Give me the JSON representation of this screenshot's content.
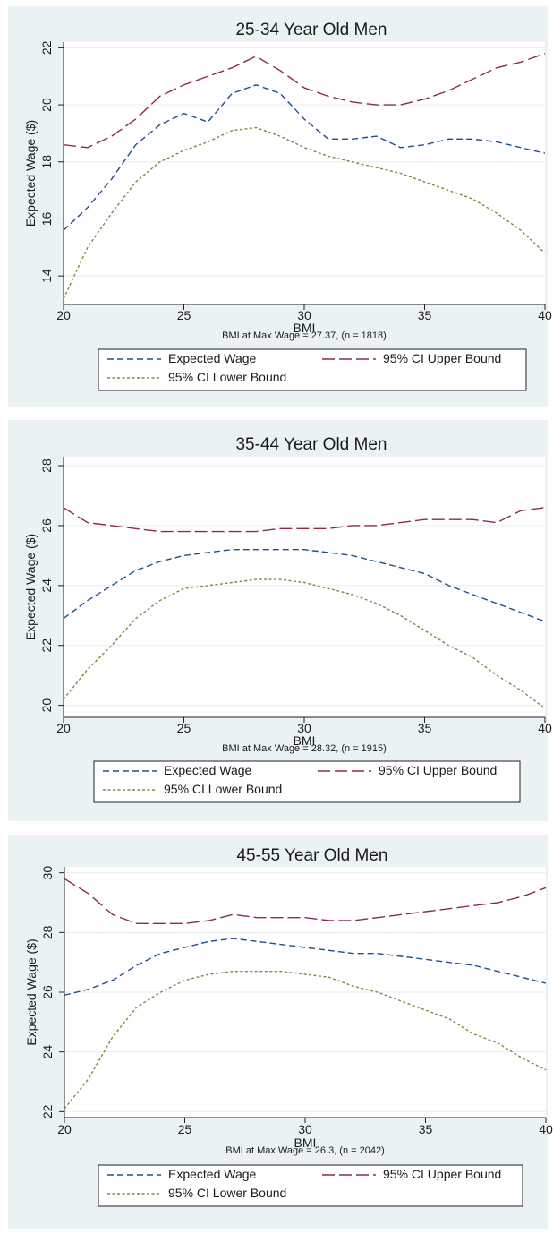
{
  "chart_data": [
    {
      "type": "line",
      "title": "25-34 Year Old Men",
      "xlabel": "BMI",
      "ylabel": "Expected Wage ($)",
      "note": "BMI at Max Wage = 27.37, (n = 1818)",
      "xlim": [
        20,
        40
      ],
      "ylim": [
        13,
        22.2
      ],
      "xticks": [
        "20",
        "25",
        "30",
        "35",
        "40"
      ],
      "yticks": [
        "14",
        "16",
        "18",
        "20",
        "22"
      ],
      "x": [
        20,
        21,
        22,
        23,
        24,
        25,
        26,
        27,
        28,
        29,
        30,
        31,
        32,
        33,
        34,
        35,
        36,
        37,
        38,
        39,
        40
      ],
      "legend": {
        "position": "bottom"
      },
      "series": [
        {
          "name": "Expected Wage",
          "color": "#1f4e8c",
          "dash": "7,4",
          "values": [
            15.6,
            16.4,
            17.4,
            18.6,
            19.3,
            19.7,
            19.4,
            20.4,
            20.7,
            20.4,
            19.5,
            18.8,
            18.8,
            18.9,
            18.5,
            18.6,
            18.8,
            18.8,
            18.7,
            18.5,
            18.3
          ]
        },
        {
          "name": "95% CI Upper Bound",
          "color": "#8b2f3a",
          "dash": "14,5",
          "values": [
            18.6,
            18.5,
            18.9,
            19.5,
            20.3,
            20.7,
            21.0,
            21.3,
            21.7,
            21.2,
            20.6,
            20.3,
            20.1,
            20.0,
            20.0,
            20.2,
            20.5,
            20.9,
            21.3,
            21.5,
            21.8
          ]
        },
        {
          "name": "95% CI Lower Bound",
          "color": "#7a8a3e",
          "dash": "3,2.5",
          "values": [
            13.2,
            15.0,
            16.2,
            17.3,
            18.0,
            18.4,
            18.7,
            19.1,
            19.2,
            18.9,
            18.5,
            18.2,
            18.0,
            17.8,
            17.6,
            17.3,
            17.0,
            16.7,
            16.2,
            15.6,
            14.8
          ]
        }
      ]
    },
    {
      "type": "line",
      "title": "35-44 Year Old Men",
      "xlabel": "BMI",
      "ylabel": "Expected Wage ($)",
      "note": "BMI at Max Wage = 28.32, (n = 1915)",
      "xlim": [
        20,
        40
      ],
      "ylim": [
        19.6,
        28.3
      ],
      "xticks": [
        "20",
        "25",
        "30",
        "35",
        "40"
      ],
      "yticks": [
        "20",
        "22",
        "24",
        "26",
        "28"
      ],
      "x": [
        20,
        21,
        22,
        23,
        24,
        25,
        26,
        27,
        28,
        29,
        30,
        31,
        32,
        33,
        34,
        35,
        36,
        37,
        38,
        39,
        40
      ],
      "legend": {
        "position": "bottom"
      },
      "series": [
        {
          "name": "Expected Wage",
          "color": "#1f4e8c",
          "dash": "7,4",
          "values": [
            22.9,
            23.5,
            24.0,
            24.5,
            24.8,
            25.0,
            25.1,
            25.2,
            25.2,
            25.2,
            25.2,
            25.1,
            25.0,
            24.8,
            24.6,
            24.4,
            24.0,
            23.7,
            23.4,
            23.1,
            22.8
          ]
        },
        {
          "name": "95% CI Upper Bound",
          "color": "#8b2f3a",
          "dash": "14,5",
          "values": [
            26.6,
            26.1,
            26.0,
            25.9,
            25.8,
            25.8,
            25.8,
            25.8,
            25.8,
            25.9,
            25.9,
            25.9,
            26.0,
            26.0,
            26.1,
            26.2,
            26.2,
            26.2,
            26.1,
            26.5,
            26.6
          ]
        },
        {
          "name": "95% CI Lower Bound",
          "color": "#7a8a3e",
          "dash": "3,2.5",
          "values": [
            20.2,
            21.2,
            22.0,
            22.9,
            23.5,
            23.9,
            24.0,
            24.1,
            24.2,
            24.2,
            24.1,
            23.9,
            23.7,
            23.4,
            23.0,
            22.5,
            22.0,
            21.6,
            21.0,
            20.5,
            19.9
          ]
        }
      ]
    },
    {
      "type": "line",
      "title": "45-55 Year Old Men",
      "xlabel": "BMI",
      "ylabel": "Expected Wage ($)",
      "note": "BMI at Max Wage = 26.3, (n = 2042)",
      "xlim": [
        20,
        40
      ],
      "ylim": [
        21.8,
        30.2
      ],
      "xticks": [
        "20",
        "25",
        "30",
        "35",
        "40"
      ],
      "yticks": [
        "22",
        "24",
        "26",
        "28",
        "30"
      ],
      "x": [
        20,
        21,
        22,
        23,
        24,
        25,
        26,
        27,
        28,
        29,
        30,
        31,
        32,
        33,
        34,
        35,
        36,
        37,
        38,
        39,
        40
      ],
      "legend": {
        "position": "bottom"
      },
      "series": [
        {
          "name": "Expected Wage",
          "color": "#1f4e8c",
          "dash": "7,4",
          "values": [
            25.9,
            26.1,
            26.4,
            26.9,
            27.3,
            27.5,
            27.7,
            27.8,
            27.7,
            27.6,
            27.5,
            27.4,
            27.3,
            27.3,
            27.2,
            27.1,
            27.0,
            26.9,
            26.7,
            26.5,
            26.3
          ]
        },
        {
          "name": "95% CI Upper Bound",
          "color": "#8b2f3a",
          "dash": "14,5",
          "values": [
            29.8,
            29.3,
            28.6,
            28.3,
            28.3,
            28.3,
            28.4,
            28.6,
            28.5,
            28.5,
            28.5,
            28.4,
            28.4,
            28.5,
            28.6,
            28.7,
            28.8,
            28.9,
            29.0,
            29.2,
            29.5
          ]
        },
        {
          "name": "95% CI Lower Bound",
          "color": "#7a8a3e",
          "dash": "3,2.5",
          "values": [
            22.1,
            23.1,
            24.5,
            25.5,
            26.0,
            26.4,
            26.6,
            26.7,
            26.7,
            26.7,
            26.6,
            26.5,
            26.2,
            26.0,
            25.7,
            25.4,
            25.1,
            24.6,
            24.3,
            23.8,
            23.4
          ]
        }
      ]
    }
  ]
}
